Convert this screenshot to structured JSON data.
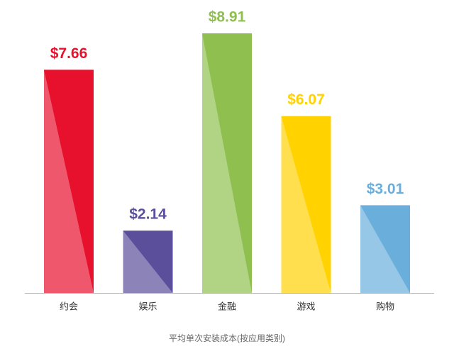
{
  "chart_data": {
    "type": "bar",
    "title": "平均单次安装成本(按应用类别)",
    "categories": [
      "约会",
      "娱乐",
      "金融",
      "游戏",
      "购物"
    ],
    "values": [
      7.66,
      2.14,
      8.91,
      6.07,
      3.01
    ],
    "value_labels": [
      "$7.66",
      "$2.14",
      "$8.91",
      "$6.07",
      "$3.01"
    ],
    "colors": [
      "#e8112d",
      "#5b4e9b",
      "#8fc04f",
      "#ffd200",
      "#6aafdc"
    ]
  }
}
